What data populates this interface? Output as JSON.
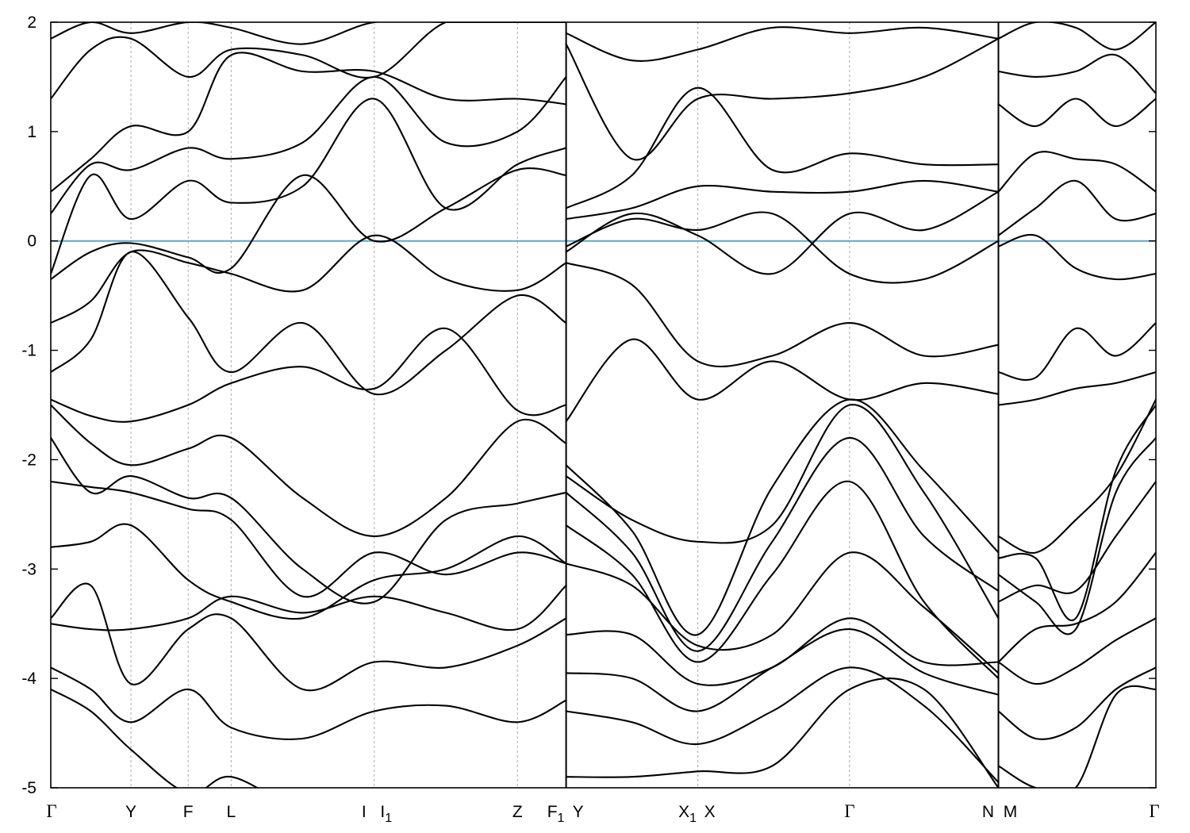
{
  "chart_data": {
    "type": "line",
    "title": "",
    "xlabel": "",
    "ylabel": "",
    "ylim": [
      -5,
      2
    ],
    "yticks": [
      2,
      1,
      0,
      -1,
      -2,
      -3,
      -4,
      -5
    ],
    "ytick_labels": [
      "2",
      "1",
      "0",
      "-1",
      "-2",
      "-3",
      "-4",
      "-5"
    ],
    "fermi_level": 0,
    "fermi_color": "#5fa8c9",
    "band_color": "#000000",
    "grid": "vertical dotted lines at high-symmetry points",
    "xlim": [
      0,
      19.3
    ],
    "high_symmetry_points": [
      {
        "label": "Γ",
        "sub": "",
        "x": 0,
        "greek": true
      },
      {
        "label": "Y",
        "sub": "",
        "x": 1.4,
        "greek": false
      },
      {
        "label": "F",
        "sub": "",
        "x": 2.4,
        "greek": false
      },
      {
        "label": "L",
        "sub": "",
        "x": 3.15,
        "greek": false
      },
      {
        "label": "I",
        "sub": "",
        "x": 5.65,
        "greek": false
      },
      {
        "label": "I",
        "sub": "1",
        "x": 5.65,
        "greek": false
      },
      {
        "label": "Z",
        "sub": "",
        "x": 8.15,
        "greek": false
      },
      {
        "label": "F",
        "sub": "1",
        "x": 9.0,
        "greek": false
      },
      {
        "label": "Y",
        "sub": "",
        "x": 9.0,
        "greek": false
      },
      {
        "label": "X",
        "sub": "1",
        "x": 11.3,
        "greek": false
      },
      {
        "label": "X",
        "sub": "",
        "x": 11.3,
        "greek": false
      },
      {
        "label": "Γ",
        "sub": "",
        "x": 13.95,
        "greek": true
      },
      {
        "label": "N",
        "sub": "",
        "x": 16.55,
        "greek": false
      },
      {
        "label": "M",
        "sub": "",
        "x": 16.55,
        "greek": false
      },
      {
        "label": "Γ",
        "sub": "",
        "x": 19.3,
        "greek": true
      }
    ],
    "segment_breaks": [
      9.0,
      16.55
    ],
    "segments": [
      {
        "name": "Γ-Y-F-L-I | I1-Z-F1",
        "x": [
          0,
          0.7,
          1.4,
          2.4,
          3.15,
          4.4,
          5.65,
          6.9,
          8.15,
          9.0
        ],
        "bands": [
          [
            -4.1,
            -4.3,
            -4.65,
            -5.05,
            -4.9,
            -5.2,
            -5.2,
            -5.2,
            -5.2,
            -5.2
          ],
          [
            -3.9,
            -4.1,
            -4.4,
            -4.1,
            -4.45,
            -4.55,
            -4.3,
            -4.25,
            -4.4,
            -4.2
          ],
          [
            -3.45,
            -3.15,
            -4.05,
            -3.55,
            -3.45,
            -4.1,
            -3.85,
            -3.9,
            -3.7,
            -3.45
          ],
          [
            -3.5,
            -3.55,
            -3.55,
            -3.45,
            -3.25,
            -3.4,
            -3.25,
            -3.4,
            -3.55,
            -3.15
          ],
          [
            -2.8,
            -2.75,
            -2.6,
            -3.1,
            -3.3,
            -3.45,
            -3.1,
            -3.0,
            -2.7,
            -2.95
          ],
          [
            -2.2,
            -2.25,
            -2.3,
            -2.45,
            -2.55,
            -3.25,
            -2.85,
            -3.05,
            -2.85,
            -2.95
          ],
          [
            -1.8,
            -2.3,
            -2.15,
            -2.35,
            -2.35,
            -3.0,
            -3.3,
            -2.55,
            -2.4,
            -2.3
          ],
          [
            -1.5,
            -1.85,
            -2.05,
            -1.9,
            -1.8,
            -2.35,
            -2.7,
            -2.35,
            -1.65,
            -1.85
          ],
          [
            -1.45,
            -1.6,
            -1.65,
            -1.5,
            -1.3,
            -1.15,
            -1.35,
            -0.8,
            -1.55,
            -1.5
          ],
          [
            -1.2,
            -0.9,
            -0.1,
            -0.7,
            -1.2,
            -0.75,
            -1.4,
            -1.0,
            -0.5,
            -0.75
          ],
          [
            -0.75,
            -0.55,
            -0.1,
            -0.2,
            -0.3,
            -0.45,
            0.05,
            -0.35,
            -0.45,
            -0.2
          ],
          [
            -0.35,
            -0.1,
            -0.02,
            -0.15,
            -0.25,
            0.6,
            0.0,
            0.3,
            0.65,
            0.6
          ],
          [
            -0.3,
            0.6,
            0.2,
            0.55,
            0.35,
            0.5,
            1.3,
            0.3,
            0.7,
            0.85
          ],
          [
            0.25,
            0.7,
            0.65,
            0.85,
            0.75,
            0.9,
            1.5,
            0.9,
            1.0,
            1.5
          ],
          [
            0.45,
            0.75,
            1.05,
            1.0,
            1.7,
            1.55,
            1.55,
            1.3,
            1.3,
            1.25
          ],
          [
            1.3,
            1.75,
            1.85,
            1.5,
            1.75,
            1.7,
            1.5,
            2.0,
            2.0,
            2.0
          ],
          [
            1.85,
            2.0,
            1.9,
            2.0,
            1.95,
            1.8,
            2.0,
            2.0,
            2.0,
            2.0
          ]
        ]
      },
      {
        "name": "Y-X1 | X-Γ-N",
        "x": [
          9.0,
          10.15,
          11.3,
          12.6,
          13.95,
          15.25,
          16.55
        ],
        "bands": [
          [
            -4.9,
            -4.9,
            -4.85,
            -4.8,
            -4.1,
            -4.1,
            -5.0
          ],
          [
            -4.3,
            -4.4,
            -4.6,
            -4.3,
            -3.9,
            -4.25,
            -4.95
          ],
          [
            -3.95,
            -4.0,
            -4.3,
            -3.9,
            -3.55,
            -3.95,
            -4.15
          ],
          [
            -3.6,
            -3.6,
            -4.05,
            -3.9,
            -3.45,
            -3.85,
            -3.85
          ],
          [
            -2.95,
            -3.15,
            -3.7,
            -3.6,
            -2.85,
            -3.35,
            -3.95
          ],
          [
            -2.6,
            -3.05,
            -3.85,
            -3.05,
            -2.2,
            -3.3,
            -4.0
          ],
          [
            -2.3,
            -2.85,
            -3.75,
            -2.75,
            -1.8,
            -2.7,
            -3.2
          ],
          [
            -2.15,
            -2.55,
            -2.75,
            -2.6,
            -1.5,
            -2.3,
            -3.45
          ],
          [
            -2.05,
            -2.65,
            -3.6,
            -2.25,
            -1.45,
            -2.1,
            -2.85
          ],
          [
            -1.65,
            -0.9,
            -1.45,
            -1.1,
            -1.45,
            -1.3,
            -1.4
          ],
          [
            -0.2,
            -0.4,
            -1.1,
            -1.05,
            -0.75,
            -1.05,
            -0.95
          ],
          [
            -0.05,
            0.2,
            0.1,
            0.25,
            -0.3,
            -0.35,
            0.0
          ],
          [
            -0.1,
            0.25,
            0.05,
            -0.3,
            0.25,
            0.1,
            0.45
          ],
          [
            0.2,
            0.3,
            0.5,
            0.45,
            0.45,
            0.55,
            0.45
          ],
          [
            0.3,
            0.6,
            1.4,
            0.65,
            0.8,
            0.7,
            0.7
          ],
          [
            1.8,
            0.75,
            1.3,
            1.3,
            1.35,
            1.5,
            1.85
          ],
          [
            1.9,
            1.65,
            1.75,
            1.95,
            1.9,
            1.95,
            1.85
          ]
        ]
      },
      {
        "name": "M-Γ",
        "x": [
          16.55,
          17.2,
          17.9,
          18.6,
          19.3
        ],
        "bands": [
          [
            -4.8,
            -5.0,
            -5.0,
            -4.15,
            -4.1
          ],
          [
            -4.3,
            -4.55,
            -4.45,
            -4.1,
            -3.9
          ],
          [
            -3.85,
            -4.05,
            -3.9,
            -3.65,
            -3.45
          ],
          [
            -3.85,
            -3.55,
            -3.5,
            -3.3,
            -2.85
          ],
          [
            -3.3,
            -3.15,
            -3.2,
            -2.7,
            -2.2
          ],
          [
            -3.05,
            -3.3,
            -3.55,
            -2.3,
            -1.8
          ],
          [
            -2.9,
            -2.9,
            -3.45,
            -2.1,
            -1.5
          ],
          [
            -2.7,
            -2.85,
            -2.55,
            -2.15,
            -1.45
          ],
          [
            -1.5,
            -1.45,
            -1.35,
            -1.3,
            -1.2
          ],
          [
            -1.2,
            -1.25,
            -0.8,
            -1.05,
            -0.75
          ],
          [
            -0.05,
            0.05,
            -0.25,
            -0.35,
            -0.3
          ],
          [
            0.05,
            0.3,
            0.55,
            0.2,
            0.25
          ],
          [
            0.45,
            0.8,
            0.75,
            0.7,
            0.45
          ],
          [
            1.25,
            1.05,
            1.3,
            1.05,
            1.3
          ],
          [
            1.55,
            1.5,
            1.55,
            1.7,
            1.35
          ],
          [
            1.85,
            2.0,
            1.95,
            1.75,
            2.0
          ]
        ]
      }
    ]
  }
}
